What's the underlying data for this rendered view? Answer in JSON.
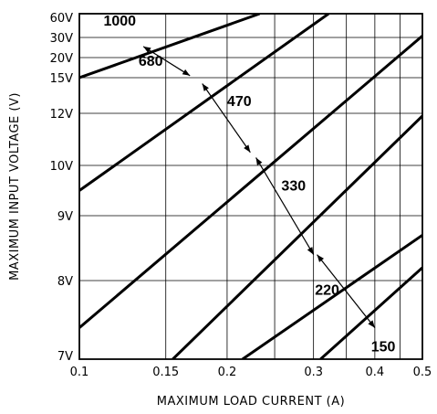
{
  "chart_data": {
    "type": "line",
    "title": "",
    "xlabel": "MAXIMUM LOAD CURRENT (A)",
    "ylabel": "MAXIMUM INPUT VOLTAGE (V)",
    "x_scale": "log",
    "y_scale": "custom",
    "grid": true,
    "xlim": [
      0.1,
      0.5
    ],
    "x_ticks": [
      0.1,
      0.15,
      0.2,
      0.3,
      0.4,
      0.5
    ],
    "x_tick_labels": [
      "0.1",
      "0.15",
      "0.2",
      "0.3",
      "0.4",
      "0.5"
    ],
    "y_ticks": [
      7,
      8,
      9,
      10,
      12,
      15,
      20,
      30,
      60
    ],
    "y_tick_labels": [
      "7V",
      "8V",
      "9V",
      "10V",
      "12V",
      "15V",
      "20V",
      "30V",
      "60V"
    ],
    "series": [
      {
        "name": "1000",
        "x": [
          0.1,
          0.233
        ],
        "y": [
          15,
          60
        ]
      },
      {
        "name": "680",
        "x": [
          0.1,
          0.322
        ],
        "y": [
          9.5,
          60
        ]
      },
      {
        "name": "470",
        "x": [
          0.1,
          0.5
        ],
        "y": [
          7.4,
          32
        ]
      },
      {
        "name": "330",
        "x": [
          0.155,
          0.5
        ],
        "y": [
          7,
          11.9
        ]
      },
      {
        "name": "220",
        "x": [
          0.215,
          0.5
        ],
        "y": [
          7,
          8.7
        ]
      },
      {
        "name": "150",
        "x": [
          0.31,
          0.5
        ],
        "y": [
          7,
          8.2
        ]
      }
    ],
    "annotations": [
      {
        "type": "double-arrow",
        "x": [
          0.135,
          0.168
        ],
        "y": [
          25.5,
          15.5
        ]
      },
      {
        "type": "double-arrow",
        "x": [
          0.178,
          0.223
        ],
        "y": [
          14.5,
          10.5
        ]
      },
      {
        "type": "double-arrow",
        "x": [
          0.229,
          0.3
        ],
        "y": [
          10.3,
          8.4
        ]
      },
      {
        "type": "double-arrow",
        "x": [
          0.305,
          0.4
        ],
        "y": [
          8.4,
          7.4
        ]
      }
    ]
  }
}
